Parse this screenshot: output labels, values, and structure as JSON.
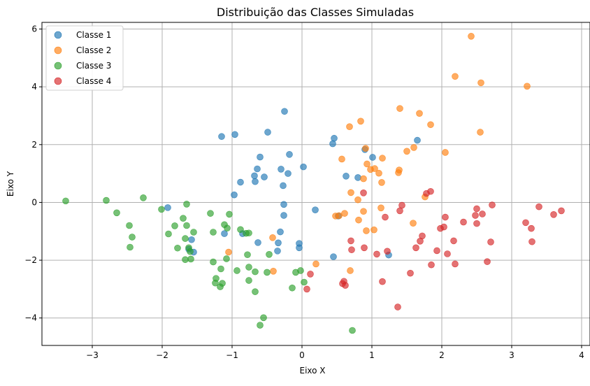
{
  "chart_data": {
    "type": "scatter",
    "title": "Distribuição das Classes Simuladas",
    "xlabel": "Eixo X",
    "ylabel": "Eixo Y",
    "xlim": [
      -3.72,
      4.12
    ],
    "ylim": [
      -4.95,
      6.23
    ],
    "xticks": [
      -3,
      -2,
      -1,
      0,
      1,
      2,
      3,
      4
    ],
    "xtick_labels": [
      "−3",
      "−2",
      "−1",
      "0",
      "1",
      "2",
      "3",
      "4"
    ],
    "yticks": [
      -4,
      -2,
      0,
      2,
      4,
      6
    ],
    "ytick_labels": [
      "−4",
      "−2",
      "0",
      "2",
      "4",
      "6"
    ],
    "grid": true,
    "legend_position": "top-left",
    "series": [
      {
        "name": "Classe 1",
        "color": "#1f77b4",
        "points": [
          [
            -1.15,
            2.28
          ],
          [
            -0.96,
            2.35
          ],
          [
            -0.49,
            2.43
          ],
          [
            -0.25,
            3.15
          ],
          [
            0.44,
            2.03
          ],
          [
            0.46,
            2.22
          ],
          [
            -0.6,
            1.57
          ],
          [
            -0.18,
            1.66
          ],
          [
            -0.3,
            1.15
          ],
          [
            -0.64,
            1.16
          ],
          [
            -0.2,
            1.0
          ],
          [
            0.02,
            1.23
          ],
          [
            -0.68,
            0.92
          ],
          [
            -0.54,
            0.88
          ],
          [
            -0.27,
            0.58
          ],
          [
            -0.67,
            0.72
          ],
          [
            -0.88,
            0.7
          ],
          [
            -0.97,
            0.26
          ],
          [
            -0.26,
            -0.07
          ],
          [
            -0.26,
            -0.45
          ],
          [
            0.19,
            -0.26
          ],
          [
            0.52,
            -0.47
          ],
          [
            0.45,
            -1.88
          ],
          [
            0.63,
            0.91
          ],
          [
            0.8,
            0.86
          ],
          [
            0.9,
            1.83
          ],
          [
            1.01,
            1.56
          ],
          [
            1.65,
            2.15
          ],
          [
            1.24,
            -1.82
          ],
          [
            -1.92,
            -0.18
          ],
          [
            -1.58,
            -1.29
          ],
          [
            -1.55,
            -1.72
          ],
          [
            -1.62,
            -1.62
          ],
          [
            -1.11,
            -1.08
          ],
          [
            -0.85,
            -1.08
          ],
          [
            -0.31,
            -1.02
          ],
          [
            -0.63,
            -1.39
          ],
          [
            -0.34,
            -1.4
          ],
          [
            -0.04,
            -1.42
          ],
          [
            -0.04,
            -1.57
          ],
          [
            -0.35,
            -1.68
          ]
        ]
      },
      {
        "name": "Classe 2",
        "color": "#ff7f0e",
        "points": [
          [
            2.42,
            5.75
          ],
          [
            2.19,
            4.36
          ],
          [
            2.56,
            4.14
          ],
          [
            3.22,
            4.02
          ],
          [
            1.4,
            3.25
          ],
          [
            1.68,
            3.08
          ],
          [
            0.84,
            2.81
          ],
          [
            0.68,
            2.62
          ],
          [
            1.84,
            2.69
          ],
          [
            0.91,
            1.87
          ],
          [
            0.57,
            1.5
          ],
          [
            1.5,
            1.77
          ],
          [
            1.6,
            1.9
          ],
          [
            2.55,
            2.43
          ],
          [
            2.05,
            1.73
          ],
          [
            1.15,
            1.53
          ],
          [
            0.93,
            1.33
          ],
          [
            0.98,
            1.14
          ],
          [
            1.04,
            1.17
          ],
          [
            1.1,
            1.01
          ],
          [
            1.39,
            1.12
          ],
          [
            1.38,
            1.03
          ],
          [
            0.88,
            0.82
          ],
          [
            1.14,
            0.69
          ],
          [
            0.7,
            0.34
          ],
          [
            0.8,
            0.09
          ],
          [
            1.76,
            0.19
          ],
          [
            1.13,
            -0.19
          ],
          [
            0.88,
            -0.31
          ],
          [
            0.61,
            -0.38
          ],
          [
            0.48,
            -0.47
          ],
          [
            0.53,
            -0.46
          ],
          [
            0.81,
            -0.61
          ],
          [
            1.03,
            -0.95
          ],
          [
            0.92,
            -0.98
          ],
          [
            1.59,
            -0.72
          ],
          [
            -0.42,
            -1.22
          ],
          [
            -1.05,
            -1.72
          ],
          [
            0.2,
            -2.13
          ],
          [
            0.69,
            -2.36
          ],
          [
            -0.41,
            -2.38
          ]
        ]
      },
      {
        "name": "Classe 3",
        "color": "#2ca02c",
        "points": [
          [
            -3.38,
            0.05
          ],
          [
            -2.8,
            0.07
          ],
          [
            -2.65,
            -0.36
          ],
          [
            -2.27,
            0.16
          ],
          [
            -2.01,
            -0.24
          ],
          [
            -1.65,
            -0.06
          ],
          [
            -1.31,
            -0.38
          ],
          [
            -1.04,
            -0.41
          ],
          [
            -1.82,
            -0.81
          ],
          [
            -1.7,
            -0.55
          ],
          [
            -1.65,
            -0.8
          ],
          [
            -1.91,
            -1.09
          ],
          [
            -1.55,
            -1.03
          ],
          [
            -1.27,
            -1.03
          ],
          [
            -1.11,
            -0.77
          ],
          [
            -1.07,
            -0.89
          ],
          [
            -0.88,
            -0.94
          ],
          [
            -0.8,
            -1.07
          ],
          [
            -0.76,
            -1.06
          ],
          [
            -2.47,
            -0.8
          ],
          [
            -2.43,
            -1.2
          ],
          [
            -2.46,
            -1.55
          ],
          [
            -1.78,
            -1.58
          ],
          [
            -1.62,
            -1.57
          ],
          [
            -1.67,
            -1.25
          ],
          [
            -1.6,
            -1.7
          ],
          [
            -1.59,
            -1.96
          ],
          [
            -1.67,
            -1.98
          ],
          [
            -1.08,
            -1.95
          ],
          [
            -1.27,
            -2.06
          ],
          [
            -0.78,
            -1.81
          ],
          [
            -0.47,
            -1.8
          ],
          [
            -1.16,
            -2.3
          ],
          [
            -0.93,
            -2.36
          ],
          [
            -0.76,
            -2.24
          ],
          [
            -0.67,
            -2.4
          ],
          [
            -0.5,
            -2.42
          ],
          [
            -0.09,
            -2.42
          ],
          [
            -0.02,
            -2.36
          ],
          [
            -1.23,
            -2.63
          ],
          [
            -1.24,
            -2.79
          ],
          [
            -1.14,
            -2.8
          ],
          [
            -1.17,
            -2.92
          ],
          [
            -0.76,
            -2.7
          ],
          [
            -0.67,
            -3.09
          ],
          [
            0.03,
            -2.76
          ],
          [
            -0.14,
            -2.96
          ],
          [
            -0.55,
            -3.99
          ],
          [
            -0.6,
            -4.25
          ],
          [
            0.72,
            -4.43
          ]
        ]
      },
      {
        "name": "Classe 4",
        "color": "#d62728",
        "points": [
          [
            2.72,
            -0.09
          ],
          [
            3.39,
            -0.15
          ],
          [
            3.71,
            -0.29
          ],
          [
            3.6,
            -0.42
          ],
          [
            2.5,
            -0.22
          ],
          [
            2.58,
            -0.4
          ],
          [
            2.48,
            -0.45
          ],
          [
            2.31,
            -0.68
          ],
          [
            2.5,
            -0.73
          ],
          [
            3.2,
            -0.7
          ],
          [
            3.28,
            -0.9
          ],
          [
            3.29,
            -1.36
          ],
          [
            2.7,
            -1.37
          ],
          [
            2.65,
            -2.05
          ],
          [
            2.17,
            -1.33
          ],
          [
            2.19,
            -2.13
          ],
          [
            2.05,
            -0.51
          ],
          [
            2.03,
            -0.85
          ],
          [
            1.98,
            -0.9
          ],
          [
            2.08,
            -1.78
          ],
          [
            1.93,
            -1.67
          ],
          [
            1.69,
            -1.34
          ],
          [
            1.72,
            -1.16
          ],
          [
            1.63,
            -1.57
          ],
          [
            1.85,
            -2.16
          ],
          [
            1.55,
            -2.45
          ],
          [
            1.78,
            0.31
          ],
          [
            1.84,
            0.38
          ],
          [
            1.43,
            -0.1
          ],
          [
            1.19,
            -0.51
          ],
          [
            1.4,
            -0.29
          ],
          [
            0.88,
            0.33
          ],
          [
            0.89,
            -1.57
          ],
          [
            0.7,
            -1.33
          ],
          [
            0.71,
            -1.64
          ],
          [
            1.22,
            -1.69
          ],
          [
            1.07,
            -1.79
          ],
          [
            1.15,
            -2.74
          ],
          [
            1.37,
            -3.62
          ],
          [
            0.12,
            -2.48
          ],
          [
            0.07,
            -3.0
          ],
          [
            0.6,
            -2.73
          ],
          [
            0.58,
            -2.81
          ],
          [
            0.62,
            -2.87
          ]
        ]
      }
    ]
  }
}
